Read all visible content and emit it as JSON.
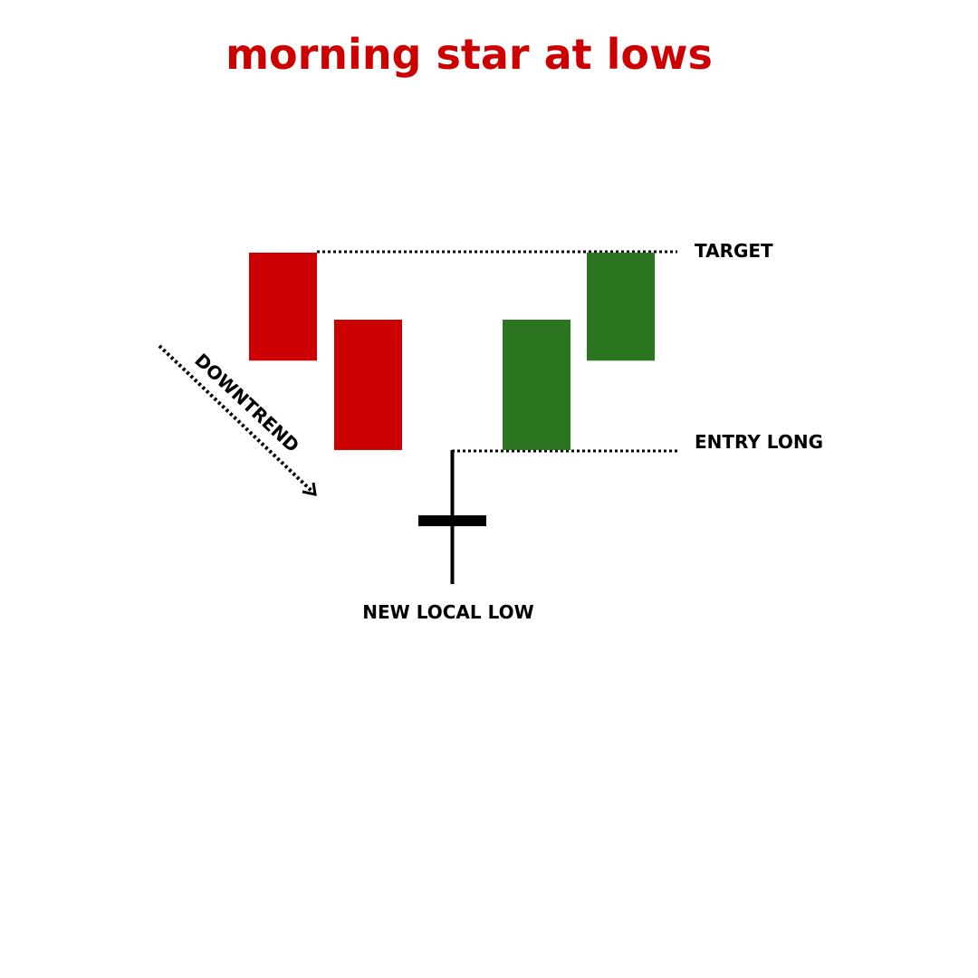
{
  "title": "morning star at lows",
  "colors": {
    "title": "#cc0000",
    "bearish": "#cc0000",
    "bullish": "#2b7520",
    "ink": "#000000",
    "background": "#ffffff"
  },
  "labels": {
    "target": "TARGET",
    "entry_long": "ENTRY LONG",
    "downtrend": "DOWNTREND",
    "new_local_low": "NEW LOCAL LOW"
  },
  "candles": [
    {
      "role": "bearish",
      "open": 100,
      "close": 71
    },
    {
      "role": "bearish",
      "open": 82,
      "close": 47
    },
    {
      "role": "doji",
      "open": 28,
      "close": 28,
      "high": 47,
      "low": 11
    },
    {
      "role": "bullish",
      "open": 47,
      "close": 82
    },
    {
      "role": "bullish",
      "open": 71,
      "close": 100
    }
  ],
  "levels": {
    "target": 100,
    "entry_long": 47
  }
}
